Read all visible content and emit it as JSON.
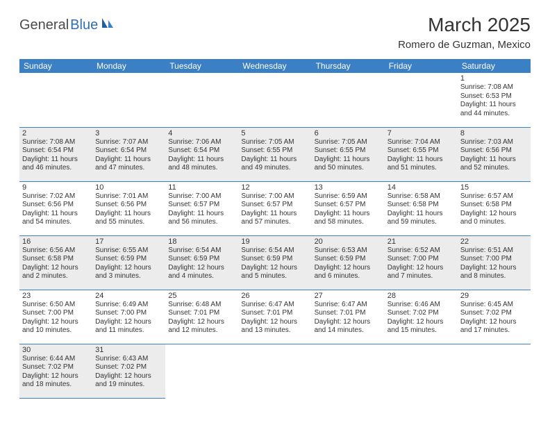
{
  "logo": {
    "part1": "General",
    "part2": "Blue"
  },
  "title": "March 2025",
  "location": "Romero de Guzman, Mexico",
  "colors": {
    "header_bg": "#3b7fc4",
    "header_text": "#ffffff",
    "shaded_bg": "#ececec",
    "cell_bg": "#ffffff",
    "border": "#3b7fc4",
    "text": "#333333",
    "logo_gray": "#4a4a4a",
    "logo_blue": "#2f6fb0"
  },
  "day_names": [
    "Sunday",
    "Monday",
    "Tuesday",
    "Wednesday",
    "Thursday",
    "Friday",
    "Saturday"
  ],
  "weeks": [
    [
      {
        "empty": true
      },
      {
        "empty": true
      },
      {
        "empty": true
      },
      {
        "empty": true
      },
      {
        "empty": true
      },
      {
        "empty": true
      },
      {
        "num": "1",
        "sunrise": "Sunrise: 7:08 AM",
        "sunset": "Sunset: 6:53 PM",
        "daylight": "Daylight: 11 hours and 44 minutes.",
        "shaded": false
      }
    ],
    [
      {
        "num": "2",
        "sunrise": "Sunrise: 7:08 AM",
        "sunset": "Sunset: 6:54 PM",
        "daylight": "Daylight: 11 hours and 46 minutes.",
        "shaded": true
      },
      {
        "num": "3",
        "sunrise": "Sunrise: 7:07 AM",
        "sunset": "Sunset: 6:54 PM",
        "daylight": "Daylight: 11 hours and 47 minutes.",
        "shaded": true
      },
      {
        "num": "4",
        "sunrise": "Sunrise: 7:06 AM",
        "sunset": "Sunset: 6:54 PM",
        "daylight": "Daylight: 11 hours and 48 minutes.",
        "shaded": true
      },
      {
        "num": "5",
        "sunrise": "Sunrise: 7:05 AM",
        "sunset": "Sunset: 6:55 PM",
        "daylight": "Daylight: 11 hours and 49 minutes.",
        "shaded": true
      },
      {
        "num": "6",
        "sunrise": "Sunrise: 7:05 AM",
        "sunset": "Sunset: 6:55 PM",
        "daylight": "Daylight: 11 hours and 50 minutes.",
        "shaded": true
      },
      {
        "num": "7",
        "sunrise": "Sunrise: 7:04 AM",
        "sunset": "Sunset: 6:55 PM",
        "daylight": "Daylight: 11 hours and 51 minutes.",
        "shaded": true
      },
      {
        "num": "8",
        "sunrise": "Sunrise: 7:03 AM",
        "sunset": "Sunset: 6:56 PM",
        "daylight": "Daylight: 11 hours and 52 minutes.",
        "shaded": true
      }
    ],
    [
      {
        "num": "9",
        "sunrise": "Sunrise: 7:02 AM",
        "sunset": "Sunset: 6:56 PM",
        "daylight": "Daylight: 11 hours and 54 minutes.",
        "shaded": false
      },
      {
        "num": "10",
        "sunrise": "Sunrise: 7:01 AM",
        "sunset": "Sunset: 6:56 PM",
        "daylight": "Daylight: 11 hours and 55 minutes.",
        "shaded": false
      },
      {
        "num": "11",
        "sunrise": "Sunrise: 7:00 AM",
        "sunset": "Sunset: 6:57 PM",
        "daylight": "Daylight: 11 hours and 56 minutes.",
        "shaded": false
      },
      {
        "num": "12",
        "sunrise": "Sunrise: 7:00 AM",
        "sunset": "Sunset: 6:57 PM",
        "daylight": "Daylight: 11 hours and 57 minutes.",
        "shaded": false
      },
      {
        "num": "13",
        "sunrise": "Sunrise: 6:59 AM",
        "sunset": "Sunset: 6:57 PM",
        "daylight": "Daylight: 11 hours and 58 minutes.",
        "shaded": false
      },
      {
        "num": "14",
        "sunrise": "Sunrise: 6:58 AM",
        "sunset": "Sunset: 6:58 PM",
        "daylight": "Daylight: 11 hours and 59 minutes.",
        "shaded": false
      },
      {
        "num": "15",
        "sunrise": "Sunrise: 6:57 AM",
        "sunset": "Sunset: 6:58 PM",
        "daylight": "Daylight: 12 hours and 0 minutes.",
        "shaded": false
      }
    ],
    [
      {
        "num": "16",
        "sunrise": "Sunrise: 6:56 AM",
        "sunset": "Sunset: 6:58 PM",
        "daylight": "Daylight: 12 hours and 2 minutes.",
        "shaded": true
      },
      {
        "num": "17",
        "sunrise": "Sunrise: 6:55 AM",
        "sunset": "Sunset: 6:59 PM",
        "daylight": "Daylight: 12 hours and 3 minutes.",
        "shaded": true
      },
      {
        "num": "18",
        "sunrise": "Sunrise: 6:54 AM",
        "sunset": "Sunset: 6:59 PM",
        "daylight": "Daylight: 12 hours and 4 minutes.",
        "shaded": true
      },
      {
        "num": "19",
        "sunrise": "Sunrise: 6:54 AM",
        "sunset": "Sunset: 6:59 PM",
        "daylight": "Daylight: 12 hours and 5 minutes.",
        "shaded": true
      },
      {
        "num": "20",
        "sunrise": "Sunrise: 6:53 AM",
        "sunset": "Sunset: 6:59 PM",
        "daylight": "Daylight: 12 hours and 6 minutes.",
        "shaded": true
      },
      {
        "num": "21",
        "sunrise": "Sunrise: 6:52 AM",
        "sunset": "Sunset: 7:00 PM",
        "daylight": "Daylight: 12 hours and 7 minutes.",
        "shaded": true
      },
      {
        "num": "22",
        "sunrise": "Sunrise: 6:51 AM",
        "sunset": "Sunset: 7:00 PM",
        "daylight": "Daylight: 12 hours and 8 minutes.",
        "shaded": true
      }
    ],
    [
      {
        "num": "23",
        "sunrise": "Sunrise: 6:50 AM",
        "sunset": "Sunset: 7:00 PM",
        "daylight": "Daylight: 12 hours and 10 minutes.",
        "shaded": false
      },
      {
        "num": "24",
        "sunrise": "Sunrise: 6:49 AM",
        "sunset": "Sunset: 7:00 PM",
        "daylight": "Daylight: 12 hours and 11 minutes.",
        "shaded": false
      },
      {
        "num": "25",
        "sunrise": "Sunrise: 6:48 AM",
        "sunset": "Sunset: 7:01 PM",
        "daylight": "Daylight: 12 hours and 12 minutes.",
        "shaded": false
      },
      {
        "num": "26",
        "sunrise": "Sunrise: 6:47 AM",
        "sunset": "Sunset: 7:01 PM",
        "daylight": "Daylight: 12 hours and 13 minutes.",
        "shaded": false
      },
      {
        "num": "27",
        "sunrise": "Sunrise: 6:47 AM",
        "sunset": "Sunset: 7:01 PM",
        "daylight": "Daylight: 12 hours and 14 minutes.",
        "shaded": false
      },
      {
        "num": "28",
        "sunrise": "Sunrise: 6:46 AM",
        "sunset": "Sunset: 7:02 PM",
        "daylight": "Daylight: 12 hours and 15 minutes.",
        "shaded": false
      },
      {
        "num": "29",
        "sunrise": "Sunrise: 6:45 AM",
        "sunset": "Sunset: 7:02 PM",
        "daylight": "Daylight: 12 hours and 17 minutes.",
        "shaded": false
      }
    ],
    [
      {
        "num": "30",
        "sunrise": "Sunrise: 6:44 AM",
        "sunset": "Sunset: 7:02 PM",
        "daylight": "Daylight: 12 hours and 18 minutes.",
        "shaded": true
      },
      {
        "num": "31",
        "sunrise": "Sunrise: 6:43 AM",
        "sunset": "Sunset: 7:02 PM",
        "daylight": "Daylight: 12 hours and 19 minutes.",
        "shaded": true
      },
      {
        "empty": true,
        "noborder": true
      },
      {
        "empty": true,
        "noborder": true
      },
      {
        "empty": true,
        "noborder": true
      },
      {
        "empty": true,
        "noborder": true
      },
      {
        "empty": true,
        "noborder": true
      }
    ]
  ]
}
